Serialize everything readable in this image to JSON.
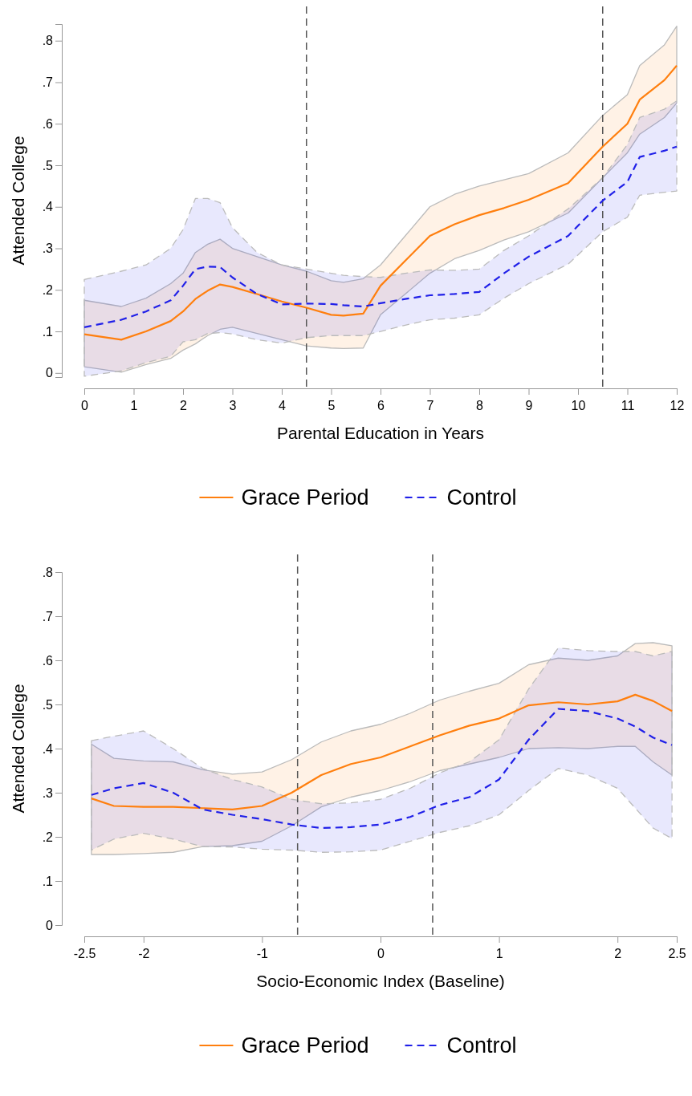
{
  "chart_data": [
    {
      "type": "line",
      "xlabel": "Parental Education in Years",
      "ylabel": "Attended College",
      "xlim": [
        0,
        12
      ],
      "xticks": [
        0,
        1,
        2,
        3,
        4,
        5,
        6,
        7,
        8,
        9,
        10,
        11,
        12
      ],
      "ylim": [
        -0.01,
        0.84
      ],
      "yticks": [
        0,
        {
          "value": 0.1,
          "label": ".1"
        },
        {
          "value": 0.2,
          "label": ".2"
        },
        {
          "value": 0.3,
          "label": ".3"
        },
        {
          "value": 0.4,
          "label": ".4"
        },
        {
          "value": 0.5,
          "label": ".5"
        },
        {
          "value": 0.6,
          "label": ".6"
        },
        {
          "value": 0.7,
          "label": ".7"
        },
        {
          "value": 0.8,
          "label": ".8"
        }
      ],
      "grid": false,
      "legend": "bottom",
      "marker": "none",
      "series": [
        {
          "name": "Grace Period",
          "color": "#ff7f0e",
          "line_style": "solid",
          "x": [
            0,
            0.75,
            1.25,
            1.75,
            2,
            2.25,
            2.5,
            2.75,
            3,
            3.5,
            4,
            4.5,
            5,
            5.25,
            5.65,
            6,
            6.5,
            7,
            7.5,
            8,
            8.5,
            9,
            9.8,
            10.5,
            11,
            11.25,
            11.75,
            12
          ],
          "values": [
            0.093,
            0.08,
            0.1,
            0.125,
            0.148,
            0.178,
            0.198,
            0.213,
            0.207,
            0.19,
            0.172,
            0.157,
            0.14,
            0.138,
            0.143,
            0.21,
            0.27,
            0.33,
            0.358,
            0.38,
            0.397,
            0.417,
            0.457,
            0.545,
            0.6,
            0.658,
            0.705,
            0.74
          ],
          "lower": [
            0.015,
            0.002,
            0.02,
            0.035,
            0.055,
            0.07,
            0.09,
            0.105,
            0.11,
            0.095,
            0.08,
            0.065,
            0.06,
            0.059,
            0.06,
            0.14,
            0.19,
            0.24,
            0.275,
            0.295,
            0.32,
            0.34,
            0.385,
            0.47,
            0.53,
            0.575,
            0.615,
            0.65
          ],
          "upper": [
            0.175,
            0.16,
            0.18,
            0.215,
            0.24,
            0.29,
            0.31,
            0.322,
            0.3,
            0.28,
            0.26,
            0.245,
            0.222,
            0.218,
            0.227,
            0.26,
            0.33,
            0.4,
            0.43,
            0.45,
            0.465,
            0.48,
            0.53,
            0.62,
            0.67,
            0.74,
            0.79,
            0.835
          ]
        },
        {
          "name": "Control",
          "color": "#2020e8",
          "line_style": "dashed",
          "x": [
            0,
            0.75,
            1.25,
            1.75,
            2,
            2.25,
            2.5,
            2.75,
            3,
            3.5,
            4,
            4.5,
            5,
            5.25,
            5.65,
            6,
            6.5,
            7,
            7.5,
            8,
            8.5,
            9,
            9.8,
            10.5,
            11,
            11.25,
            11.75,
            12
          ],
          "values": [
            0.11,
            0.128,
            0.148,
            0.175,
            0.21,
            0.25,
            0.256,
            0.255,
            0.23,
            0.19,
            0.165,
            0.167,
            0.166,
            0.163,
            0.16,
            0.168,
            0.178,
            0.187,
            0.19,
            0.195,
            0.24,
            0.28,
            0.33,
            0.415,
            0.46,
            0.52,
            0.535,
            0.545
          ],
          "lower": [
            -0.008,
            0.005,
            0.025,
            0.04,
            0.075,
            0.08,
            0.095,
            0.097,
            0.094,
            0.08,
            0.072,
            0.085,
            0.09,
            0.09,
            0.09,
            0.1,
            0.115,
            0.128,
            0.132,
            0.14,
            0.18,
            0.215,
            0.262,
            0.34,
            0.375,
            0.428,
            0.435,
            0.438
          ],
          "upper": [
            0.225,
            0.245,
            0.26,
            0.3,
            0.345,
            0.42,
            0.42,
            0.41,
            0.35,
            0.29,
            0.26,
            0.25,
            0.24,
            0.235,
            0.232,
            0.23,
            0.24,
            0.248,
            0.247,
            0.25,
            0.295,
            0.33,
            0.395,
            0.47,
            0.55,
            0.615,
            0.635,
            0.655
          ]
        }
      ],
      "ref_lines": [
        {
          "axis": "x",
          "value": 4.5,
          "color": "#555555",
          "line_style": "dashed"
        },
        {
          "axis": "x",
          "value": 10.5,
          "color": "#555555",
          "line_style": "dashed"
        }
      ]
    },
    {
      "type": "line",
      "xlabel": "Socio-Economic Index (Baseline)",
      "ylabel": "Attended College",
      "xlim": [
        -2.5,
        2.5
      ],
      "xticks": [
        -2.5,
        -2,
        -1,
        0,
        1,
        2,
        2.5
      ],
      "ylim": [
        0,
        0.8
      ],
      "yticks": [
        0,
        {
          "value": 0.1,
          "label": ".1"
        },
        {
          "value": 0.2,
          "label": ".2"
        },
        {
          "value": 0.3,
          "label": ".3"
        },
        {
          "value": 0.4,
          "label": ".4"
        },
        {
          "value": 0.5,
          "label": ".5"
        },
        {
          "value": 0.6,
          "label": ".6"
        },
        {
          "value": 0.7,
          "label": ".7"
        },
        {
          "value": 0.8,
          "label": ".8"
        }
      ],
      "grid": false,
      "legend": "bottom",
      "marker": "none",
      "series": [
        {
          "name": "Grace Period",
          "color": "#ff7f0e",
          "line_style": "solid",
          "x": [
            -2.44,
            -2.25,
            -2,
            -1.75,
            -1.5,
            -1.25,
            -1,
            -0.75,
            -0.5,
            -0.25,
            0,
            0.25,
            0.5,
            0.75,
            1,
            1.25,
            1.5,
            1.75,
            2,
            2.15,
            2.3,
            2.46
          ],
          "values": [
            0.287,
            0.27,
            0.268,
            0.268,
            0.265,
            0.262,
            0.27,
            0.3,
            0.34,
            0.365,
            0.38,
            0.405,
            0.43,
            0.452,
            0.468,
            0.498,
            0.505,
            0.5,
            0.507,
            0.522,
            0.508,
            0.485
          ],
          "lower": [
            0.16,
            0.16,
            0.162,
            0.165,
            0.178,
            0.18,
            0.19,
            0.225,
            0.268,
            0.29,
            0.305,
            0.325,
            0.35,
            0.365,
            0.38,
            0.4,
            0.402,
            0.4,
            0.405,
            0.405,
            0.37,
            0.34
          ],
          "upper": [
            0.41,
            0.378,
            0.372,
            0.37,
            0.352,
            0.342,
            0.347,
            0.375,
            0.415,
            0.44,
            0.455,
            0.48,
            0.51,
            0.53,
            0.548,
            0.59,
            0.605,
            0.6,
            0.61,
            0.638,
            0.64,
            0.633
          ]
        },
        {
          "name": "Control",
          "color": "#2020e8",
          "line_style": "dashed",
          "x": [
            -2.44,
            -2.25,
            -2,
            -1.75,
            -1.5,
            -1.25,
            -1,
            -0.75,
            -0.5,
            -0.25,
            0,
            0.25,
            0.5,
            0.75,
            1,
            1.25,
            1.5,
            1.75,
            2,
            2.15,
            2.3,
            2.46
          ],
          "values": [
            0.295,
            0.31,
            0.322,
            0.3,
            0.262,
            0.25,
            0.24,
            0.228,
            0.22,
            0.222,
            0.228,
            0.245,
            0.272,
            0.29,
            0.33,
            0.42,
            0.49,
            0.485,
            0.468,
            0.45,
            0.425,
            0.408
          ],
          "lower": [
            0.17,
            0.195,
            0.208,
            0.195,
            0.178,
            0.177,
            0.172,
            0.17,
            0.165,
            0.166,
            0.17,
            0.19,
            0.21,
            0.225,
            0.25,
            0.305,
            0.355,
            0.34,
            0.31,
            0.265,
            0.22,
            0.196
          ],
          "upper": [
            0.418,
            0.428,
            0.44,
            0.4,
            0.355,
            0.33,
            0.313,
            0.285,
            0.275,
            0.277,
            0.285,
            0.31,
            0.345,
            0.37,
            0.42,
            0.535,
            0.628,
            0.622,
            0.62,
            0.62,
            0.61,
            0.62
          ]
        }
      ],
      "ref_lines": [
        {
          "axis": "x",
          "value": -0.7,
          "color": "#555555",
          "line_style": "dashed"
        },
        {
          "axis": "x",
          "value": 0.44,
          "color": "#555555",
          "line_style": "dashed"
        }
      ]
    }
  ]
}
